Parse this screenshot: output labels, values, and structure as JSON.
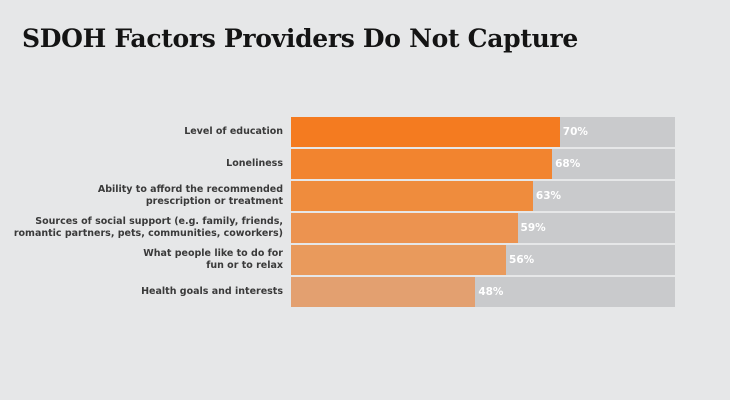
{
  "title": "SDOH Factors Providers Do Not Capture",
  "chart_data": {
    "type": "bar",
    "orientation": "horizontal",
    "categories": [
      [
        "Level of education"
      ],
      [
        "Loneliness"
      ],
      [
        "Ability to afford the recommended",
        "prescription or treatment"
      ],
      [
        "Sources of social support (e.g. family, friends,",
        "romantic partners, pets, communities, coworkers)"
      ],
      [
        "What people like to do for",
        "fun or to relax"
      ],
      [
        "Health goals and interests"
      ]
    ],
    "values": [
      70,
      68,
      63,
      59,
      56,
      48
    ],
    "value_labels": [
      "70%",
      "68%",
      "63%",
      "59%",
      "56%",
      "48%"
    ],
    "xlim": [
      0,
      100
    ],
    "grid": false,
    "colors": {
      "bars": [
        "#f47b20",
        "#f2842f",
        "#ef8c3d",
        "#ec9350",
        "#e99a5c",
        "#e3a070"
      ],
      "track": "#c9cacc",
      "background": "#e6e7e8"
    }
  }
}
